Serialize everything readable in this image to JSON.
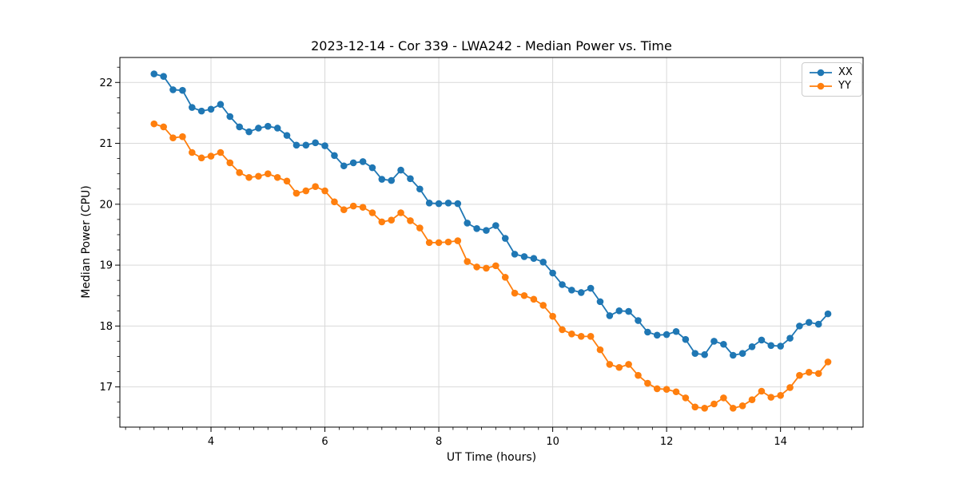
{
  "chart_data": {
    "type": "line",
    "title": "2023-12-14 - Cor 339 - LWA242 - Median Power vs. Time",
    "xlabel": "UT Time (hours)",
    "ylabel": "Median Power (CPU)",
    "xlim": [
      2.4,
      15.45
    ],
    "ylim": [
      16.34,
      22.41
    ],
    "x_ticks": [
      4,
      6,
      8,
      10,
      12,
      14
    ],
    "y_ticks": [
      17,
      18,
      19,
      20,
      21,
      22
    ],
    "x_minor_step": 0.25,
    "y_minor_step": 0.25,
    "grid": true,
    "grid_color": "#d9d9d9",
    "legend_position": "upper right",
    "x": [
      3.0,
      3.167,
      3.333,
      3.5,
      3.667,
      3.833,
      4.0,
      4.167,
      4.333,
      4.5,
      4.667,
      4.833,
      5.0,
      5.167,
      5.333,
      5.5,
      5.667,
      5.833,
      6.0,
      6.167,
      6.333,
      6.5,
      6.667,
      6.833,
      7.0,
      7.167,
      7.333,
      7.5,
      7.667,
      7.833,
      8.0,
      8.167,
      8.333,
      8.5,
      8.667,
      8.833,
      9.0,
      9.167,
      9.333,
      9.5,
      9.667,
      9.833,
      10.0,
      10.167,
      10.333,
      10.5,
      10.667,
      10.833,
      11.0,
      11.167,
      11.333,
      11.5,
      11.667,
      11.833,
      12.0,
      12.167,
      12.333,
      12.5,
      12.667,
      12.833,
      13.0,
      13.167,
      13.333,
      13.5,
      13.667,
      13.833,
      14.0,
      14.167,
      14.333,
      14.5,
      14.667,
      14.833
    ],
    "series": [
      {
        "name": "XX",
        "color": "#1f77b4",
        "values": [
          22.14,
          22.1,
          21.88,
          21.87,
          21.59,
          21.53,
          21.56,
          21.64,
          21.44,
          21.27,
          21.19,
          21.25,
          21.28,
          21.25,
          21.13,
          20.97,
          20.97,
          21.01,
          20.96,
          20.8,
          20.63,
          20.68,
          20.7,
          20.6,
          20.41,
          20.39,
          20.56,
          20.42,
          20.25,
          20.02,
          20.01,
          20.02,
          20.01,
          19.69,
          19.6,
          19.57,
          19.65,
          19.44,
          19.18,
          19.14,
          19.11,
          19.05,
          18.87,
          18.68,
          18.59,
          18.55,
          18.62,
          18.4,
          18.17,
          18.25,
          18.24,
          18.09,
          17.9,
          17.85,
          17.86,
          17.91,
          17.78,
          17.55,
          17.53,
          17.75,
          17.7,
          17.52,
          17.55,
          17.66,
          17.77,
          17.68,
          17.67,
          17.8,
          18.0,
          18.06,
          18.03,
          18.2
        ]
      },
      {
        "name": "YY",
        "color": "#ff7f0e",
        "values": [
          21.32,
          21.27,
          21.09,
          21.11,
          20.85,
          20.76,
          20.79,
          20.85,
          20.68,
          20.52,
          20.44,
          20.46,
          20.5,
          20.44,
          20.38,
          20.18,
          20.22,
          20.29,
          20.22,
          20.04,
          19.91,
          19.97,
          19.95,
          19.86,
          19.71,
          19.74,
          19.86,
          19.73,
          19.61,
          19.37,
          19.37,
          19.38,
          19.4,
          19.06,
          18.97,
          18.95,
          18.99,
          18.8,
          18.54,
          18.5,
          18.44,
          18.34,
          18.16,
          17.94,
          17.87,
          17.83,
          17.83,
          17.61,
          17.37,
          17.32,
          17.37,
          17.19,
          17.06,
          16.97,
          16.96,
          16.92,
          16.82,
          16.67,
          16.65,
          16.72,
          16.82,
          16.65,
          16.69,
          16.79,
          16.93,
          16.83,
          16.86,
          16.99,
          17.19,
          17.24,
          17.22,
          17.41
        ]
      }
    ]
  }
}
